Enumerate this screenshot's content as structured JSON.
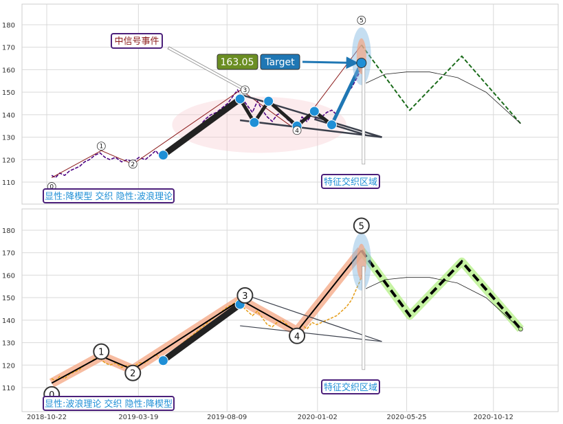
{
  "chart_data": [
    {
      "type": "line",
      "panel": "top",
      "ylim": [
        100,
        190
      ],
      "yticks": [
        110,
        120,
        130,
        140,
        150,
        160,
        170,
        180
      ],
      "xticks": [
        "2018-10-22",
        "2019-03-19",
        "2019-08-09",
        "2020-01-02",
        "2020-05-25",
        "2020-10-12"
      ],
      "show_xtick_labels": false,
      "grid": true,
      "price_color": "#4b0082",
      "price_points": [
        [
          "2018-10-30",
          113
        ],
        [
          "2018-11-05",
          112
        ],
        [
          "2018-11-12",
          114
        ],
        [
          "2018-11-20",
          113
        ],
        [
          "2018-11-28",
          115
        ],
        [
          "2018-12-06",
          116
        ],
        [
          "2018-12-14",
          117
        ],
        [
          "2018-12-22",
          119
        ],
        [
          "2018-12-30",
          120
        ],
        [
          "2019-01-08",
          122
        ],
        [
          "2019-01-16",
          123
        ],
        [
          "2019-01-24",
          121
        ],
        [
          "2019-02-01",
          120
        ],
        [
          "2019-02-10",
          121
        ],
        [
          "2019-02-20",
          119
        ],
        [
          "2019-03-01",
          120
        ],
        [
          "2019-03-10",
          119
        ],
        [
          "2019-03-20",
          121
        ],
        [
          "2019-03-30",
          120
        ],
        [
          "2019-04-08",
          122
        ],
        [
          "2019-04-16",
          124
        ],
        [
          "2019-04-24",
          121
        ],
        [
          "2019-05-03",
          124
        ],
        [
          "2019-05-12",
          126
        ],
        [
          "2019-05-21",
          128
        ],
        [
          "2019-05-30",
          129
        ],
        [
          "2019-06-08",
          131
        ],
        [
          "2019-06-17",
          133
        ],
        [
          "2019-06-26",
          135
        ],
        [
          "2019-07-05",
          138
        ],
        [
          "2019-07-14",
          140
        ],
        [
          "2019-07-23",
          141
        ],
        [
          "2019-08-01",
          143
        ],
        [
          "2019-08-10",
          145
        ],
        [
          "2019-08-18",
          148
        ],
        [
          "2019-08-26",
          151
        ],
        [
          "2019-09-03",
          147
        ],
        [
          "2019-09-11",
          144
        ],
        [
          "2019-09-19",
          141
        ],
        [
          "2019-09-27",
          146
        ],
        [
          "2019-10-05",
          142
        ],
        [
          "2019-10-13",
          139
        ],
        [
          "2019-10-21",
          137
        ],
        [
          "2019-10-29",
          140
        ],
        [
          "2019-11-06",
          141
        ],
        [
          "2019-11-14",
          138
        ],
        [
          "2019-11-22",
          136
        ],
        [
          "2019-11-30",
          133
        ],
        [
          "2019-12-08",
          139
        ],
        [
          "2019-12-16",
          137
        ],
        [
          "2019-12-24",
          140
        ],
        [
          "2020-01-01",
          138
        ],
        [
          "2020-01-09",
          139
        ],
        [
          "2020-01-17",
          141
        ],
        [
          "2020-01-25",
          142
        ],
        [
          "2020-02-02",
          140
        ],
        [
          "2020-02-10",
          145
        ],
        [
          "2020-02-18",
          150
        ],
        [
          "2020-02-26",
          152
        ],
        [
          "2020-03-05",
          156
        ],
        [
          "2020-03-10",
          159
        ],
        [
          "2020-03-13",
          163
        ]
      ],
      "wave_path": {
        "color": "#8b1a1a",
        "points": [
          [
            "2018-10-30",
            112
          ],
          [
            "2019-01-18",
            124
          ],
          [
            "2019-03-10",
            118
          ],
          [
            "2019-08-31",
            151
          ],
          [
            "2019-11-30",
            133
          ],
          [
            "2020-03-13",
            171
          ]
        ]
      },
      "wave_labels": [
        {
          "label": "0",
          "x": "2018-10-30",
          "y": 108
        },
        {
          "label": "1",
          "x": "2019-01-18",
          "y": 126
        },
        {
          "label": "2",
          "x": "2019-03-10",
          "y": 118
        },
        {
          "label": "3",
          "x": "2019-09-07",
          "y": 151
        },
        {
          "label": "4",
          "x": "2019-11-30",
          "y": 133
        },
        {
          "label": "5",
          "x": "2020-03-13",
          "y": 182
        }
      ],
      "zigzag_points": [
        [
          "2019-04-28",
          122
        ],
        [
          "2019-08-30",
          147
        ],
        [
          "2019-09-22",
          136.5
        ],
        [
          "2019-10-15",
          146
        ],
        [
          "2019-11-30",
          135
        ],
        [
          "2019-12-28",
          141.5
        ],
        [
          "2020-01-25",
          135.5
        ],
        [
          "2020-03-13",
          163
        ]
      ],
      "trend_lines": [
        [
          [
            "2019-08-30",
            149
          ],
          [
            "2020-04-15",
            130
          ]
        ],
        [
          [
            "2019-08-30",
            137.5
          ],
          [
            "2020-04-15",
            130
          ]
        ],
        [
          [
            "2019-12-28",
            138
          ],
          [
            "2020-03-20",
            131
          ]
        ]
      ],
      "projection": {
        "color": "#000000",
        "points": [
          [
            "2020-03-13",
            171
          ],
          [
            "2020-05-30",
            142
          ],
          [
            "2020-08-22",
            166
          ],
          [
            "2020-11-25",
            136
          ]
        ]
      },
      "arc_points": [
        [
          "2020-03-20",
          154
        ],
        [
          "2020-04-20",
          158
        ],
        [
          "2020-05-25",
          159
        ],
        [
          "2020-07-01",
          159
        ],
        [
          "2020-08-15",
          156.5
        ],
        [
          "2020-09-30",
          150
        ],
        [
          "2020-11-25",
          136
        ]
      ],
      "ellipse": {
        "cx": "2019-09-30",
        "cy": 135.5,
        "rx_days": 99,
        "ry": 12.5
      },
      "target_value": "163.05",
      "target_label": "Target",
      "target_point": [
        "2020-03-13",
        163
      ],
      "annotation_signal": "中信号事件",
      "annotation_zone": "特征交织区域",
      "caption": "显性:降楔型 交织 隐性:波浪理论"
    },
    {
      "type": "line",
      "panel": "bottom",
      "ylim": [
        100,
        190
      ],
      "yticks": [
        110,
        120,
        130,
        140,
        150,
        160,
        170,
        180
      ],
      "xticks": [
        "2018-10-22",
        "2019-03-19",
        "2019-08-09",
        "2020-01-02",
        "2020-05-25",
        "2020-10-12"
      ],
      "show_xtick_labels": true,
      "grid": true,
      "price_color": "#e6a020",
      "price_points": [
        [
          "2018-10-30",
          114
        ],
        [
          "2018-11-05",
          113
        ],
        [
          "2018-11-12",
          115
        ],
        [
          "2018-11-20",
          114
        ],
        [
          "2018-11-28",
          116
        ],
        [
          "2018-12-06",
          117
        ],
        [
          "2018-12-14",
          118
        ],
        [
          "2018-12-22",
          120
        ],
        [
          "2018-12-30",
          121
        ],
        [
          "2019-01-08",
          123
        ],
        [
          "2019-01-16",
          123
        ],
        [
          "2019-01-24",
          121
        ],
        [
          "2019-02-01",
          120
        ],
        [
          "2019-02-10",
          121
        ],
        [
          "2019-02-20",
          119
        ],
        [
          "2019-03-01",
          120
        ],
        [
          "2019-03-10",
          119
        ],
        [
          "2019-03-20",
          121
        ],
        [
          "2019-03-30",
          121
        ],
        [
          "2019-04-08",
          123
        ],
        [
          "2019-04-16",
          125
        ],
        [
          "2019-04-24",
          122
        ],
        [
          "2019-05-03",
          124
        ],
        [
          "2019-05-12",
          126
        ],
        [
          "2019-05-21",
          128
        ],
        [
          "2019-05-30",
          130
        ],
        [
          "2019-06-08",
          132
        ],
        [
          "2019-06-17",
          134
        ],
        [
          "2019-06-26",
          136
        ],
        [
          "2019-07-05",
          138
        ],
        [
          "2019-07-14",
          140
        ],
        [
          "2019-07-23",
          142
        ],
        [
          "2019-08-01",
          144
        ],
        [
          "2019-08-10",
          146
        ],
        [
          "2019-08-18",
          147
        ],
        [
          "2019-08-26",
          149
        ],
        [
          "2019-09-03",
          146
        ],
        [
          "2019-09-11",
          144
        ],
        [
          "2019-09-19",
          142
        ],
        [
          "2019-09-27",
          144
        ],
        [
          "2019-10-05",
          141
        ],
        [
          "2019-10-13",
          138
        ],
        [
          "2019-10-21",
          137
        ],
        [
          "2019-10-29",
          139
        ],
        [
          "2019-11-06",
          140
        ],
        [
          "2019-11-14",
          138
        ],
        [
          "2019-11-22",
          136
        ],
        [
          "2019-11-30",
          134
        ],
        [
          "2019-12-08",
          138
        ],
        [
          "2019-12-16",
          136
        ],
        [
          "2019-12-24",
          139
        ],
        [
          "2020-01-01",
          138
        ],
        [
          "2020-01-09",
          139
        ],
        [
          "2020-01-17",
          140
        ],
        [
          "2020-01-25",
          141
        ],
        [
          "2020-02-02",
          142
        ],
        [
          "2020-02-10",
          144
        ],
        [
          "2020-02-18",
          146
        ],
        [
          "2020-02-26",
          149
        ],
        [
          "2020-03-05",
          154
        ],
        [
          "2020-03-10",
          157
        ],
        [
          "2020-03-13",
          160
        ]
      ],
      "wave_path": {
        "color": "#000000",
        "points": [
          [
            "2018-10-30",
            112
          ],
          [
            "2019-01-18",
            124
          ],
          [
            "2019-03-10",
            118
          ],
          [
            "2019-08-31",
            149
          ],
          [
            "2019-11-30",
            135
          ],
          [
            "2020-03-13",
            171
          ]
        ]
      },
      "wave_labels": [
        {
          "label": "0",
          "x": "2018-10-30",
          "y": 107
        },
        {
          "label": "1",
          "x": "2019-01-18",
          "y": 126
        },
        {
          "label": "2",
          "x": "2019-03-10",
          "y": 116.5
        },
        {
          "label": "3",
          "x": "2019-09-07",
          "y": 151
        },
        {
          "label": "4",
          "x": "2019-11-30",
          "y": 133
        },
        {
          "label": "5",
          "x": "2020-03-13",
          "y": 182
        }
      ],
      "zigzag_points": [
        [
          "2019-04-28",
          122
        ],
        [
          "2019-08-30",
          147
        ]
      ],
      "trend_lines": [
        [
          [
            "2019-08-30",
            152
          ],
          [
            "2020-04-15",
            130.5
          ]
        ],
        [
          [
            "2019-08-30",
            137.5
          ],
          [
            "2020-04-15",
            130.5
          ]
        ]
      ],
      "projection": {
        "color": "#000000",
        "points": [
          [
            "2020-03-13",
            171
          ],
          [
            "2020-05-30",
            142
          ],
          [
            "2020-08-22",
            166
          ],
          [
            "2020-11-25",
            136
          ]
        ]
      },
      "arc_points": [
        [
          "2020-03-20",
          154
        ],
        [
          "2020-04-20",
          158
        ],
        [
          "2020-05-25",
          159
        ],
        [
          "2020-07-01",
          159
        ],
        [
          "2020-08-15",
          156.5
        ],
        [
          "2020-09-30",
          150
        ],
        [
          "2020-11-25",
          136
        ]
      ],
      "caption": "显性:波浪理论 交织 隐性:降楔型",
      "annotation_zone": "特征交织区域"
    }
  ]
}
